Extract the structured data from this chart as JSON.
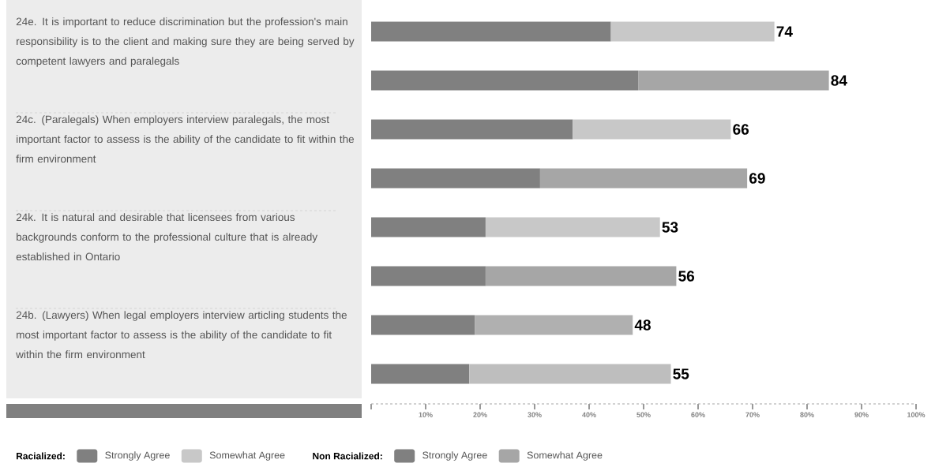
{
  "chart_data": {
    "type": "bar",
    "orientation": "horizontal",
    "stacked": true,
    "categories": [
      "24e. It is important to reduce discrimination but the profession's main responsibility is to the client and making sure they are being served by competent lawyers and paralegals",
      null,
      "24c. (Paralegals) When employers interview paralegals, the most important factor to assess is the ability of the candidate to fit within the firm environment",
      null,
      "24k. It is natural and desirable that licensees from various backgrounds conform to the professional culture that is already established in Ontario",
      null,
      "24b. (Lawyers) When legal employers interview articling students the most important factor to assess is the ability of the candidate to fit within the firm environment",
      null
    ],
    "series": [
      {
        "name": "Strongly Agree",
        "color": "#808080",
        "values": [
          44,
          null,
          37,
          null,
          21,
          null,
          19,
          null
        ]
      },
      {
        "name": "Somewhat Agree",
        "colors": [
          "#c8c8c8",
          null,
          "#c8c8c8",
          null,
          "#c8c8c8",
          null,
          "#b0b0b0",
          null
        ],
        "values": [
          30,
          null,
          29,
          null,
          32,
          null,
          29,
          null
        ]
      },
      {
        "name": "Strongly Agree",
        "color": "#808080",
        "values": [
          null,
          49,
          null,
          31,
          null,
          21,
          null,
          18
        ]
      },
      {
        "name": "Somewhat Agree",
        "colors": [
          null,
          "#a6a6a6",
          null,
          "#a6a6a6",
          null,
          "#a6a6a6",
          null,
          "#bebebe"
        ],
        "values": [
          null,
          35,
          null,
          38,
          null,
          35,
          null,
          37
        ]
      }
    ],
    "totals": [
      "74",
      "84",
      "66",
      "69",
      "53",
      "56",
      "48",
      "55"
    ],
    "xlim": [
      0,
      100
    ],
    "xticks": [
      {
        "value": 0,
        "label": null
      },
      {
        "value": 10,
        "label": "10%"
      },
      {
        "value": 20,
        "label": "20%"
      },
      {
        "value": 30,
        "label": "30%"
      },
      {
        "value": 40,
        "label": "40%"
      },
      {
        "value": 50,
        "label": "50%"
      },
      {
        "value": 60,
        "label": "60%"
      },
      {
        "value": 70,
        "label": "70%"
      },
      {
        "value": 80,
        "label": "80%"
      },
      {
        "value": 90,
        "label": "90%"
      },
      {
        "value": 100,
        "label": "100%"
      }
    ],
    "legend": "bottom",
    "annotations": [
      "Racialized:",
      "Non Racialized:"
    ]
  }
}
